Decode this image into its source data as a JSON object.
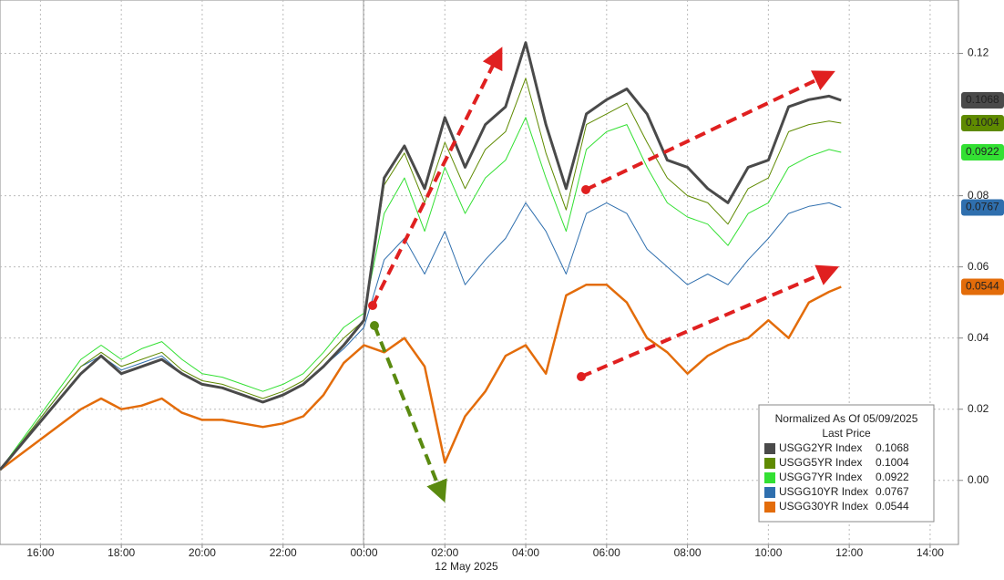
{
  "chart_data": {
    "type": "line",
    "x": [
      15,
      17,
      17.5,
      18,
      18.5,
      19,
      19.5,
      20,
      20.5,
      21,
      21.5,
      22,
      22.5,
      23,
      23.5,
      24,
      24.5,
      25,
      25.5,
      26,
      26.5,
      27,
      27.5,
      28,
      28.5,
      29,
      29.5,
      30,
      30.5,
      31,
      31.5,
      32,
      32.5,
      33,
      33.5,
      34,
      34.5,
      35,
      35.5,
      35.8
    ],
    "series": [
      {
        "name": "USGG2YR Index",
        "color": "#4a4a4a",
        "values": [
          0.003,
          0.03,
          0.035,
          0.03,
          0.032,
          0.034,
          0.03,
          0.027,
          0.026,
          0.024,
          0.022,
          0.024,
          0.027,
          0.032,
          0.038,
          0.045,
          0.085,
          0.094,
          0.082,
          0.102,
          0.088,
          0.1,
          0.105,
          0.123,
          0.1,
          0.082,
          0.103,
          0.107,
          0.11,
          0.103,
          0.09,
          0.088,
          0.082,
          0.078,
          0.088,
          0.09,
          0.105,
          0.107,
          0.108,
          0.1068
        ]
      },
      {
        "name": "USGG5YR Index",
        "color": "#5f8a00",
        "values": [
          0.003,
          0.032,
          0.036,
          0.032,
          0.034,
          0.036,
          0.031,
          0.028,
          0.027,
          0.025,
          0.023,
          0.025,
          0.028,
          0.034,
          0.04,
          0.045,
          0.083,
          0.092,
          0.078,
          0.095,
          0.082,
          0.093,
          0.098,
          0.113,
          0.092,
          0.076,
          0.1,
          0.103,
          0.106,
          0.095,
          0.085,
          0.08,
          0.078,
          0.072,
          0.082,
          0.085,
          0.098,
          0.1,
          0.101,
          0.1004
        ]
      },
      {
        "name": "USGG7YR Index",
        "color": "#33e033",
        "values": [
          0.003,
          0.034,
          0.038,
          0.034,
          0.037,
          0.039,
          0.034,
          0.03,
          0.029,
          0.027,
          0.025,
          0.027,
          0.03,
          0.036,
          0.043,
          0.047,
          0.075,
          0.085,
          0.07,
          0.088,
          0.075,
          0.085,
          0.09,
          0.102,
          0.085,
          0.07,
          0.093,
          0.098,
          0.1,
          0.088,
          0.078,
          0.074,
          0.072,
          0.066,
          0.075,
          0.078,
          0.088,
          0.091,
          0.093,
          0.0922
        ]
      },
      {
        "name": "USGG10YR Index",
        "color": "#2f6fae",
        "values": [
          0.003,
          0.032,
          0.035,
          0.031,
          0.033,
          0.035,
          0.03,
          0.027,
          0.026,
          0.024,
          0.022,
          0.024,
          0.027,
          0.032,
          0.037,
          0.043,
          0.062,
          0.068,
          0.058,
          0.07,
          0.055,
          0.062,
          0.068,
          0.078,
          0.07,
          0.058,
          0.075,
          0.078,
          0.075,
          0.065,
          0.06,
          0.055,
          0.058,
          0.055,
          0.062,
          0.068,
          0.075,
          0.077,
          0.078,
          0.0767
        ]
      },
      {
        "name": "USGG30YR Index",
        "color": "#e36c0a",
        "values": [
          0.003,
          0.02,
          0.023,
          0.02,
          0.021,
          0.023,
          0.019,
          0.017,
          0.017,
          0.016,
          0.015,
          0.016,
          0.018,
          0.024,
          0.033,
          0.038,
          0.036,
          0.04,
          0.032,
          0.005,
          0.018,
          0.025,
          0.035,
          0.038,
          0.03,
          0.052,
          0.055,
          0.055,
          0.05,
          0.04,
          0.036,
          0.03,
          0.035,
          0.038,
          0.04,
          0.045,
          0.04,
          0.05,
          0.053,
          0.0544
        ]
      }
    ],
    "xlim": [
      15,
      38.7
    ],
    "xticks": [
      {
        "value": 16,
        "label": "16:00"
      },
      {
        "value": 18,
        "label": "18:00"
      },
      {
        "value": 20,
        "label": "20:00"
      },
      {
        "value": 22,
        "label": "22:00"
      },
      {
        "value": 24,
        "label": "00:00"
      },
      {
        "value": 26,
        "label": "02:00"
      },
      {
        "value": 28,
        "label": "04:00"
      },
      {
        "value": 30,
        "label": "06:00"
      },
      {
        "value": 32,
        "label": "08:00"
      },
      {
        "value": 34,
        "label": "10:00"
      },
      {
        "value": 36,
        "label": "12:00"
      },
      {
        "value": 38,
        "label": "14:00"
      }
    ],
    "ylim": [
      -0.018,
      0.135
    ],
    "yticks": [
      {
        "value": 0,
        "label": "0.00"
      },
      0.02,
      0.04,
      0.06,
      0.08,
      0.12
    ],
    "x_annotation": "12 May 2025",
    "legend_title": "Normalized As Of 05/09/2025",
    "legend_subtitle": "Last Price",
    "legend_position": "lower right",
    "grid": true
  }
}
